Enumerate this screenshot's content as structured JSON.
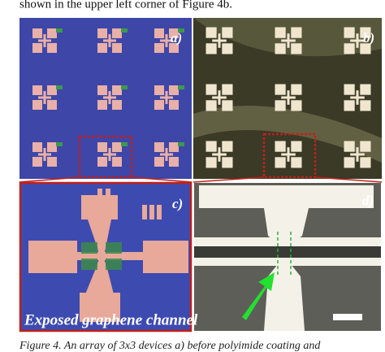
{
  "body_text": "shown in the upper left corner of Figure 4b.",
  "figure": {
    "panels": [
      "a)",
      "b)",
      "c)",
      "d)"
    ],
    "annotation": "Exposed graphene channel",
    "caption": "Figure 4. An array of 3x3 devices a) before polyimide coating and"
  }
}
